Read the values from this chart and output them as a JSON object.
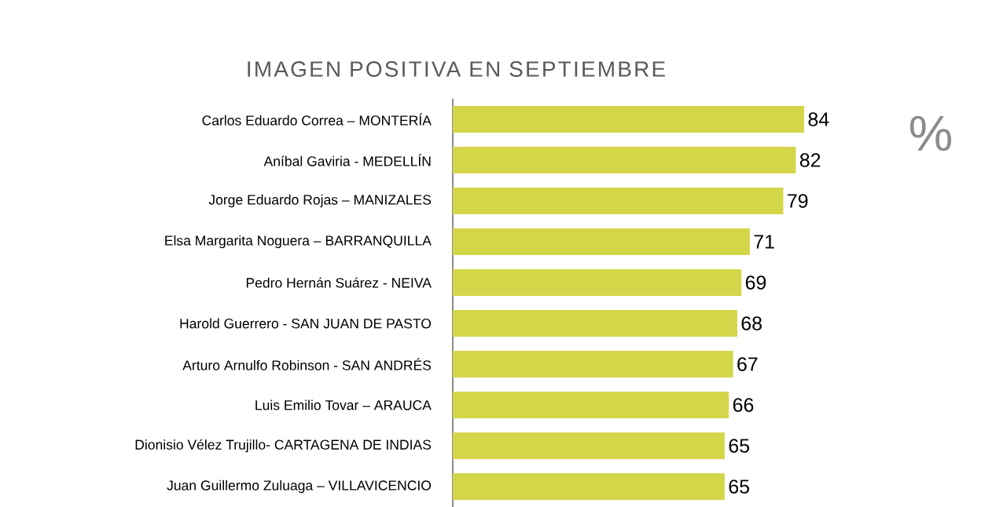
{
  "chart_data": {
    "type": "bar",
    "orientation": "horizontal",
    "title": "IMAGEN POSITIVA EN SEPTIEMBRE",
    "categories": [
      "Carlos Eduardo Correa – MONTERÍA",
      "Aníbal Gaviria - MEDELLÍN",
      "Jorge Eduardo Rojas – MANIZALES",
      "Elsa Margarita Noguera – BARRANQUILLA",
      "Pedro Hernán Suárez - NEIVA",
      "Harold Guerrero - SAN JUAN DE PASTO",
      "Arturo Arnulfo Robinson - SAN ANDRÉS",
      "Luis Emilio Tovar – ARAUCA",
      "Dionisio Vélez Trujillo- CARTAGENA DE INDIAS",
      "Juan Guillermo Zuluaga – VILLAVICENCIO"
    ],
    "values": [
      84,
      82,
      79,
      71,
      69,
      68,
      67,
      66,
      65,
      65
    ],
    "color": "#d4d64a",
    "data_labels": true,
    "annotations": [
      "%"
    ]
  }
}
